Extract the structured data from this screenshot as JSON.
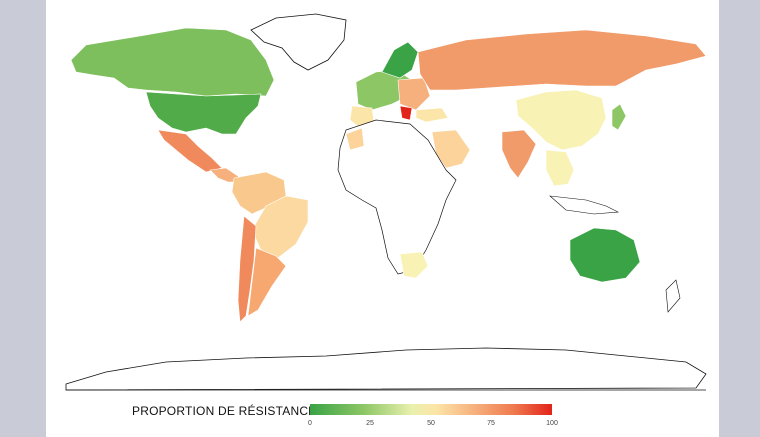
{
  "legend": {
    "title": "PROPORTION DE RÉSISTANCE",
    "ticks": [
      "0",
      "25",
      "50",
      "75",
      "100"
    ],
    "scale_colors": [
      "#3aa346",
      "#8cc665",
      "#e9f0ae",
      "#fce5a8",
      "#f6b07d",
      "#ef7b4f",
      "#e2231a"
    ]
  }
}
